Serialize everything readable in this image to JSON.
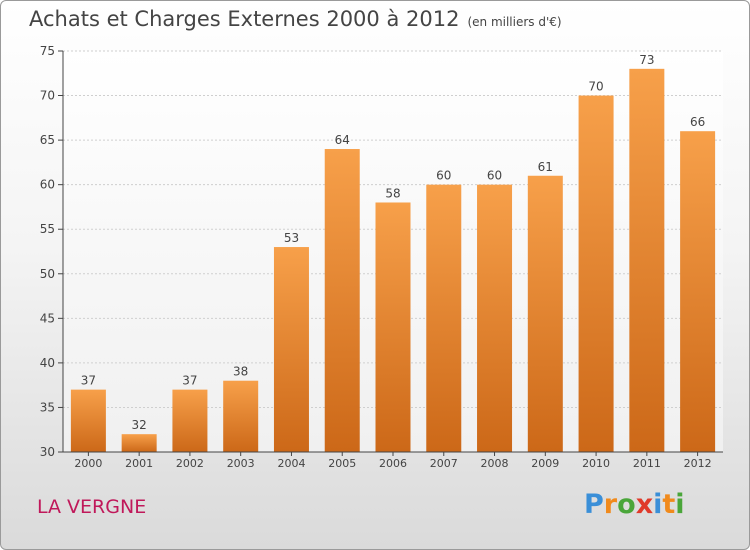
{
  "chart_data": {
    "type": "bar",
    "title": "Achats et Charges Externes 2000 à 2012",
    "subtitle": "(en milliers d'€)",
    "categories": [
      "2000",
      "2001",
      "2002",
      "2003",
      "2004",
      "2005",
      "2006",
      "2007",
      "2008",
      "2009",
      "2010",
      "2011",
      "2012"
    ],
    "values": [
      37,
      32,
      37,
      38,
      53,
      64,
      58,
      60,
      60,
      61,
      70,
      73,
      66
    ],
    "ylim": [
      30,
      75
    ],
    "yticks": [
      30,
      35,
      40,
      45,
      50,
      55,
      60,
      65,
      70,
      75
    ],
    "grid": true,
    "bar_color": "#f2922f",
    "bar_color_dark": "#cc6818"
  },
  "location": "LA VERGNE",
  "logo": {
    "letters": [
      "P",
      "r",
      "o",
      "x",
      "i",
      "t",
      "i"
    ],
    "colors": [
      "#3a8fd8",
      "#f08a1c",
      "#4aa63a",
      "#e03a2a",
      "#3a8fd8",
      "#f08a1c",
      "#4aa63a"
    ]
  }
}
